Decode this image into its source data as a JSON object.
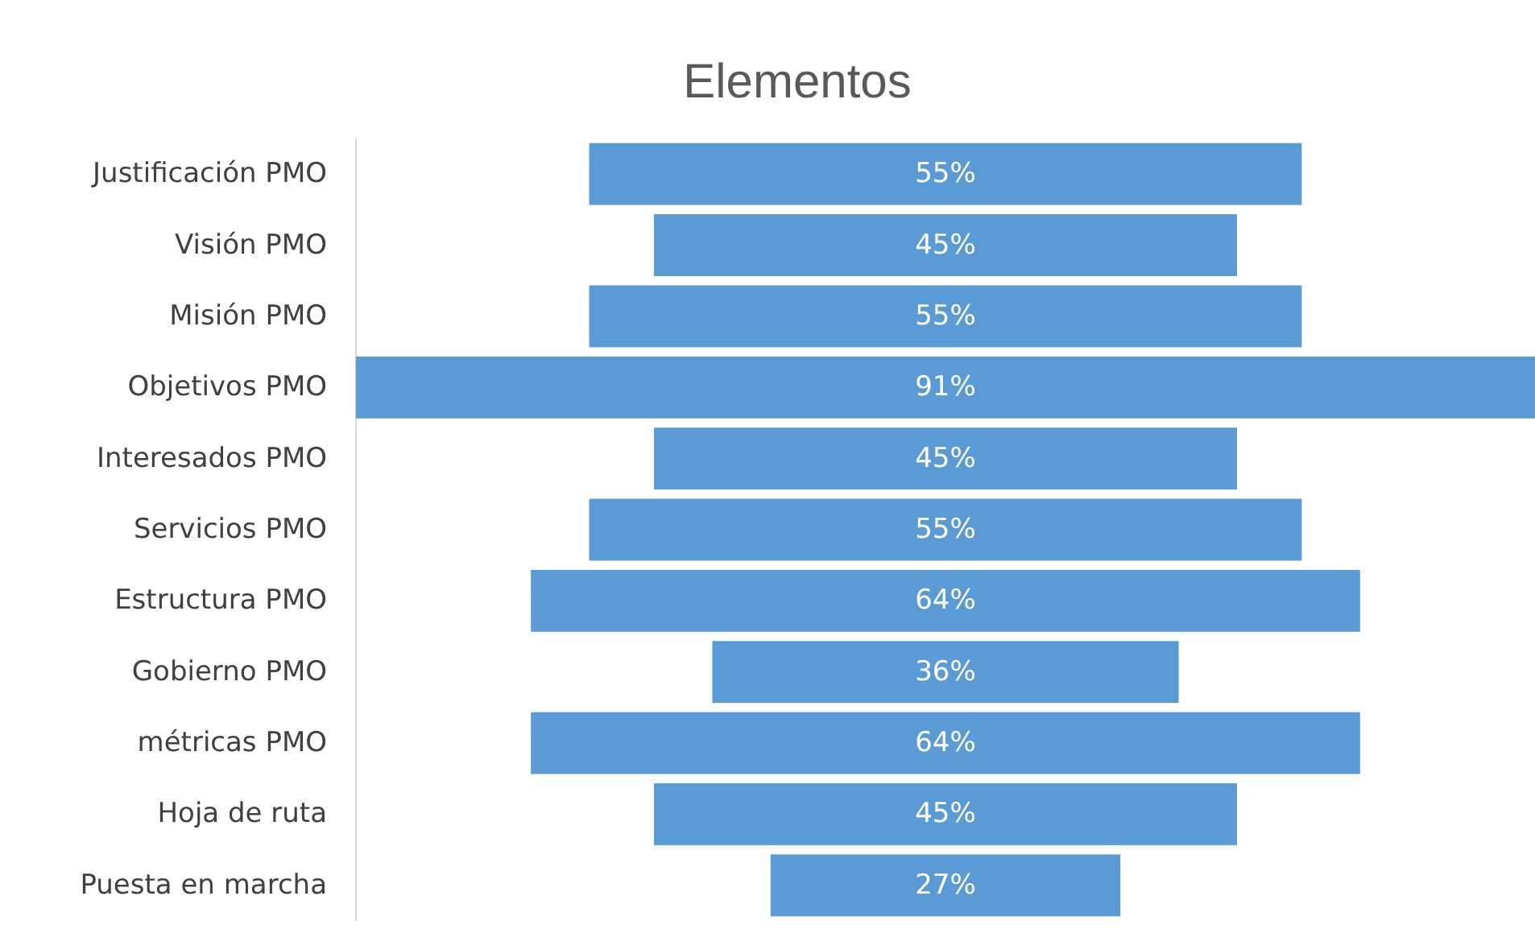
{
  "chart_data": {
    "type": "other",
    "title": "Elementos",
    "categories": [
      "Justificación PMO",
      "Visión PMO",
      "Misión PMO",
      "Objetivos PMO",
      "Interesados PMO",
      "Servicios PMO",
      "Estructura PMO",
      "Gobierno PMO",
      "métricas PMO",
      "Hoja de ruta",
      "Puesta en marcha"
    ],
    "values": [
      55,
      45,
      55,
      91,
      45,
      55,
      64,
      36,
      64,
      45,
      27
    ],
    "color": "#5b9bd5",
    "value_labels": [
      "55%",
      "45%",
      "55%",
      "91%",
      "45%",
      "55%",
      "64%",
      "36%",
      "64%",
      "45%",
      "27%"
    ]
  }
}
